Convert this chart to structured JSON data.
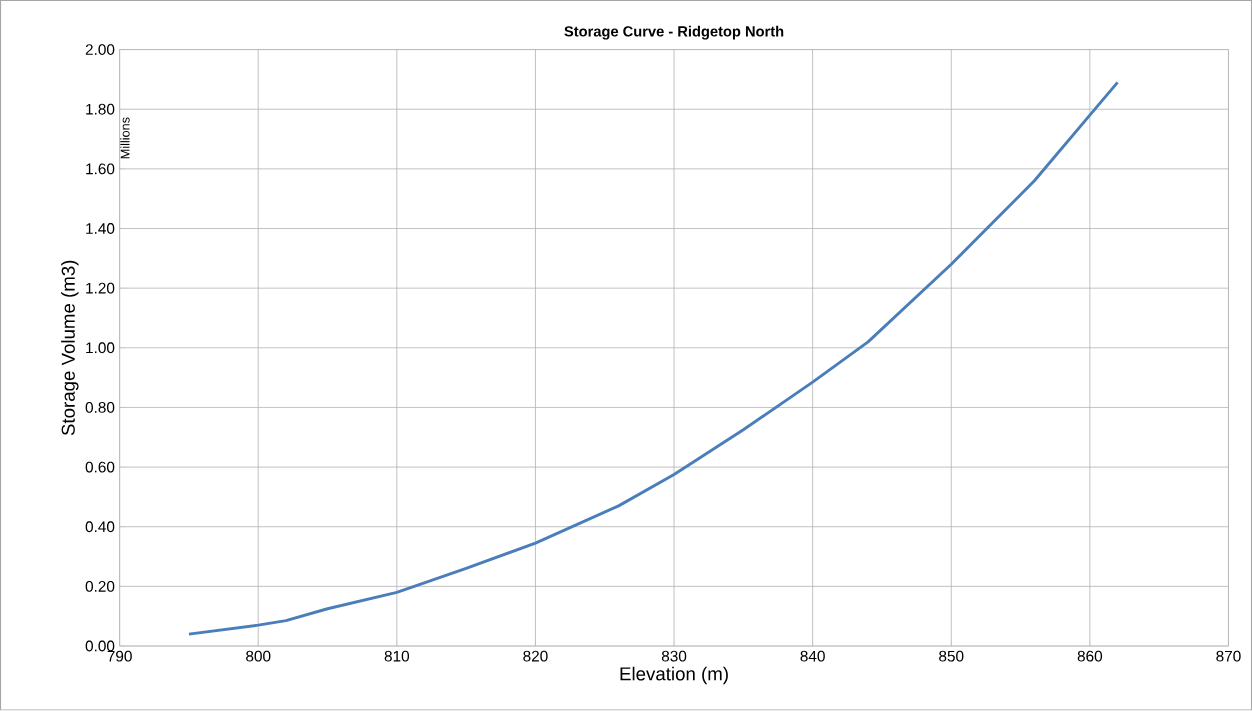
{
  "chart_data": {
    "type": "line",
    "title": "Storage Curve - Ridgetop North",
    "xlabel": "Elevation (m)",
    "ylabel": "Storage Volume (m3)",
    "annotations": [
      "Millions"
    ],
    "series": [
      {
        "color": "#4a7ebb",
        "x": [
          795,
          800,
          802,
          805,
          810,
          815,
          820,
          826,
          830,
          835,
          840,
          844,
          850,
          853,
          856,
          860,
          862
        ],
        "values": [
          0.04,
          0.07,
          0.085,
          0.125,
          0.18,
          0.26,
          0.345,
          0.47,
          0.575,
          0.725,
          0.885,
          1.02,
          1.28,
          1.42,
          1.56,
          1.78,
          1.89
        ]
      }
    ],
    "xlim": [
      790,
      870
    ],
    "xticks": [
      790,
      800,
      810,
      820,
      830,
      840,
      850,
      860,
      870
    ],
    "ylim": [
      0,
      2
    ],
    "yticks": [
      {
        "value": 0,
        "label": "0.00"
      },
      {
        "value": 0.2,
        "label": "0.20"
      },
      {
        "value": 0.4,
        "label": "0.40"
      },
      {
        "value": 0.6,
        "label": "0.60"
      },
      {
        "value": 0.8,
        "label": "0.80"
      },
      {
        "value": 1,
        "label": "1.00"
      },
      {
        "value": 1.2,
        "label": "1.20"
      },
      {
        "value": 1.4,
        "label": "1.40"
      },
      {
        "value": 1.6,
        "label": "1.60"
      },
      {
        "value": 1.8,
        "label": "1.80"
      },
      {
        "value": 2,
        "label": "2.00"
      }
    ],
    "grid": true,
    "marker": "none",
    "line_style": "solid"
  }
}
